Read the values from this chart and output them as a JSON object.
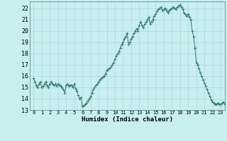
{
  "title": "",
  "xlabel": "Humidex (Indice chaleur)",
  "bg_color": "#c8eeee",
  "grid_color": "#b0dddd",
  "line_color": "#2d7a6e",
  "marker_color": "#2d7a6e",
  "xlim": [
    -0.5,
    23.5
  ],
  "ylim": [
    13,
    22.6
  ],
  "yticks": [
    13,
    14,
    15,
    16,
    17,
    18,
    19,
    20,
    21,
    22
  ],
  "xticks": [
    0,
    1,
    2,
    3,
    4,
    5,
    6,
    7,
    8,
    9,
    10,
    11,
    12,
    13,
    14,
    15,
    16,
    17,
    18,
    19,
    20,
    21,
    22,
    23
  ],
  "x": [
    0.0,
    0.17,
    0.33,
    0.5,
    0.67,
    0.83,
    1.0,
    1.17,
    1.33,
    1.5,
    1.67,
    1.83,
    2.0,
    2.17,
    2.33,
    2.5,
    2.67,
    2.83,
    3.0,
    3.17,
    3.33,
    3.5,
    3.67,
    3.83,
    4.0,
    4.17,
    4.33,
    4.5,
    4.67,
    4.83,
    5.0,
    5.17,
    5.33,
    5.5,
    5.67,
    5.83,
    6.0,
    6.17,
    6.33,
    6.5,
    6.67,
    6.83,
    7.0,
    7.17,
    7.33,
    7.5,
    7.67,
    7.83,
    8.0,
    8.17,
    8.33,
    8.5,
    8.67,
    8.83,
    9.0,
    9.17,
    9.33,
    9.5,
    9.67,
    9.83,
    10.0,
    10.17,
    10.33,
    10.5,
    10.67,
    10.83,
    11.0,
    11.17,
    11.33,
    11.5,
    11.67,
    11.83,
    12.0,
    12.17,
    12.33,
    12.5,
    12.67,
    12.83,
    13.0,
    13.17,
    13.33,
    13.5,
    13.67,
    13.83,
    14.0,
    14.17,
    14.33,
    14.5,
    14.67,
    14.83,
    15.0,
    15.17,
    15.33,
    15.5,
    15.67,
    15.83,
    16.0,
    16.17,
    16.33,
    16.5,
    16.67,
    16.83,
    17.0,
    17.17,
    17.33,
    17.5,
    17.67,
    17.83,
    18.0,
    18.17,
    18.33,
    18.5,
    18.67,
    18.83,
    19.0,
    19.17,
    19.33,
    19.5,
    19.67,
    19.83,
    20.0,
    20.17,
    20.33,
    20.5,
    20.67,
    20.83,
    21.0,
    21.17,
    21.33,
    21.5,
    21.67,
    21.83,
    22.0,
    22.17,
    22.33,
    22.5,
    22.67,
    22.83,
    23.0,
    23.17,
    23.33,
    23.5
  ],
  "y": [
    15.8,
    15.5,
    15.2,
    15.0,
    15.3,
    15.5,
    15.0,
    15.1,
    15.3,
    15.5,
    15.2,
    15.0,
    15.3,
    15.5,
    15.3,
    15.2,
    15.3,
    15.1,
    15.3,
    15.2,
    15.1,
    15.0,
    14.8,
    14.5,
    15.2,
    15.3,
    15.1,
    15.2,
    15.2,
    15.0,
    15.3,
    14.9,
    14.7,
    14.3,
    14.0,
    14.1,
    13.3,
    13.4,
    13.5,
    13.6,
    13.8,
    14.0,
    14.2,
    14.5,
    14.8,
    15.0,
    15.2,
    15.3,
    15.5,
    15.7,
    15.8,
    15.9,
    16.0,
    16.2,
    16.5,
    16.6,
    16.7,
    16.8,
    17.0,
    17.2,
    17.5,
    17.8,
    18.0,
    18.2,
    18.5,
    18.8,
    19.0,
    19.3,
    19.5,
    19.8,
    18.8,
    19.0,
    19.3,
    19.5,
    19.8,
    20.0,
    20.2,
    20.0,
    20.5,
    20.8,
    20.5,
    20.3,
    20.6,
    20.8,
    21.0,
    21.2,
    20.6,
    20.8,
    21.0,
    21.3,
    21.5,
    21.7,
    21.9,
    22.0,
    22.1,
    21.8,
    21.9,
    22.0,
    21.8,
    21.6,
    21.8,
    21.9,
    22.0,
    22.1,
    22.0,
    21.9,
    22.1,
    22.2,
    22.3,
    22.1,
    21.9,
    21.6,
    21.5,
    21.3,
    21.5,
    21.2,
    21.0,
    20.0,
    19.5,
    18.5,
    17.2,
    17.0,
    16.7,
    16.3,
    16.0,
    15.7,
    15.4,
    15.1,
    14.8,
    14.5,
    14.2,
    13.9,
    13.7,
    13.6,
    13.5,
    13.5,
    13.6,
    13.5,
    13.5,
    13.6,
    13.7,
    13.5
  ]
}
